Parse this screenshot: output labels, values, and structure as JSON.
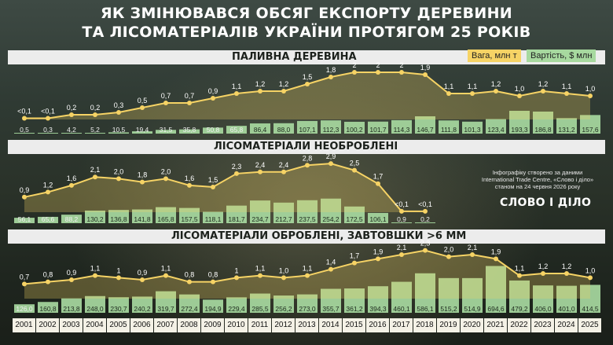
{
  "title": {
    "line1": "ЯК ЗМІНЮВАВСЯ ОБСЯГ ЕКСПОРТУ ДЕРЕВИНИ",
    "line2": "ТА ЛІСОМАТЕРІАЛІВ УКРАЇНИ ПРОТЯГОМ 25 РОКІВ"
  },
  "legend": {
    "weight": "Вага, млн т",
    "value": "Вартість, $ млн"
  },
  "note": {
    "line1": "Інфографіку створено за даними",
    "line2": "International Trade Centre, «Слово і діло»",
    "line3": "станом на 24 червня 2026 року"
  },
  "brand": "СЛОВО І ДІЛО",
  "colors": {
    "weight": "#f6d365",
    "value": "#a7d99f",
    "band": "#ececec"
  },
  "chart_data": [
    {
      "type": "bar",
      "title": "ПАЛИВНА ДЕРЕВИНА",
      "categories": [
        "2001",
        "2002",
        "2003",
        "2004",
        "2005",
        "2006",
        "2007",
        "2008",
        "2009",
        "2010",
        "2011",
        "2012",
        "2013",
        "2014",
        "2015",
        "2016",
        "2017",
        "2018",
        "2019",
        "2020",
        "2021",
        "2022",
        "2023",
        "2024",
        "2025"
      ],
      "series": [
        {
          "name": "Вага, млн т",
          "role": "line",
          "values": [
            0.05,
            0.05,
            0.2,
            0.2,
            0.3,
            0.5,
            0.7,
            0.7,
            0.9,
            1.1,
            1.2,
            1.2,
            1.5,
            1.8,
            2,
            2,
            2,
            1.9,
            1.1,
            1.1,
            1.2,
            1.0,
            1.2,
            1.1,
            1.0
          ],
          "labels": [
            "<0,1",
            "<0,1",
            "0,2",
            "0,2",
            "0,3",
            "0,5",
            "0,7",
            "0,7",
            "0,9",
            "1,1",
            "1,2",
            "1,2",
            "1,5",
            "1,8",
            "2",
            "2",
            "2",
            "1,9",
            "1,1",
            "1,1",
            "1,2",
            "1,0",
            "1,2",
            "1,1",
            "1,0"
          ]
        },
        {
          "name": "Вартість, $ млн",
          "role": "bar",
          "values": [
            0.5,
            0.3,
            4.2,
            5.2,
            10.5,
            19.4,
            31.5,
            35.8,
            50.8,
            65.8,
            86.4,
            88.0,
            107.1,
            112.3,
            100.2,
            101.7,
            114.3,
            146.7,
            111.8,
            101.3,
            123.4,
            193.3,
            186.8,
            131.2,
            157.6
          ],
          "labels": [
            "0,5",
            "0,3",
            "4,2",
            "5,2",
            "10,5",
            "19,4",
            "31,5",
            "35,8",
            "50,8",
            "65,8",
            "86,4",
            "88,0",
            "107,1",
            "112,3",
            "100,2",
            "101,7",
            "114,3",
            "146,7",
            "111,8",
            "101,3",
            "123,4",
            "193,3",
            "186,8",
            "131,2",
            "157,6"
          ]
        }
      ]
    },
    {
      "type": "bar",
      "title": "ЛІСОМАТЕРІАЛИ НЕОБРОБЛЕНІ",
      "categories": [
        "2001",
        "2002",
        "2003",
        "2004",
        "2005",
        "2006",
        "2007",
        "2008",
        "2009",
        "2010",
        "2011",
        "2012",
        "2013",
        "2014",
        "2015",
        "2016",
        "2017",
        "2018"
      ],
      "series": [
        {
          "name": "Вага, млн т",
          "role": "line",
          "values": [
            0.9,
            1.2,
            1.6,
            2.1,
            2.0,
            1.8,
            2.0,
            1.6,
            1.5,
            2.3,
            2.4,
            2.4,
            2.8,
            2.9,
            2.5,
            1.7,
            0.05,
            0.05
          ],
          "labels": [
            "0,9",
            "1,2",
            "1,6",
            "2,1",
            "2,0",
            "1,8",
            "2,0",
            "1,6",
            "1,5",
            "2,3",
            "2,4",
            "2,4",
            "2,8",
            "2,9",
            "2,5",
            "1,7",
            "<0,1",
            "<0,1"
          ]
        },
        {
          "name": "Вартість, $ млн",
          "role": "bar",
          "values": [
            56.1,
            65.6,
            88.2,
            130.2,
            136.8,
            141.8,
            165.8,
            157.5,
            118.1,
            181.7,
            234.7,
            212.7,
            237.5,
            254.2,
            172.5,
            106.1,
            0.9,
            0.2
          ],
          "labels": [
            "56,1",
            "65,6",
            "88,2",
            "130,2",
            "136,8",
            "141,8",
            "165,8",
            "157,5",
            "118,1",
            "181,7",
            "234,7",
            "212,7",
            "237,5",
            "254,2",
            "172,5",
            "106,1",
            "0,9",
            "0,2"
          ]
        }
      ]
    },
    {
      "type": "bar",
      "title": "ЛІСОМАТЕРІАЛИ ОБРОБЛЕНІ, ЗАВТОВШКИ >6 ММ",
      "categories": [
        "2001",
        "2002",
        "2003",
        "2004",
        "2005",
        "2006",
        "2007",
        "2008",
        "2009",
        "2010",
        "2011",
        "2012",
        "2013",
        "2014",
        "2015",
        "2016",
        "2017",
        "2018",
        "2019",
        "2020",
        "2021",
        "2022",
        "2023",
        "2024",
        "2025"
      ],
      "series": [
        {
          "name": "Вага, млн т",
          "role": "line",
          "values": [
            0.7,
            0.8,
            0.9,
            1.1,
            1,
            0.9,
            1.1,
            0.8,
            0.8,
            1,
            1.1,
            1.0,
            1.1,
            1.4,
            1.7,
            1.9,
            2.1,
            2.3,
            2.0,
            2.1,
            1.9,
            1.1,
            1.2,
            1.2,
            1.0
          ],
          "labels": [
            "0,7",
            "0,8",
            "0,9",
            "1,1",
            "1",
            "0,9",
            "1,1",
            "0,8",
            "0,8",
            "1",
            "1,1",
            "1,0",
            "1,1",
            "1,4",
            "1,7",
            "1,9",
            "2,1",
            "2,3",
            "2,0",
            "2,1",
            "1,9",
            "1,1",
            "1,2",
            "1,2",
            "1,0"
          ]
        },
        {
          "name": "Вартість, $ млн",
          "role": "bar",
          "values": [
            126.0,
            160.8,
            213.8,
            248.0,
            230.7,
            240.2,
            319.7,
            272.4,
            194.9,
            229.4,
            285.5,
            256.2,
            273.0,
            355.7,
            361.2,
            394.3,
            460.1,
            586.1,
            515.2,
            514.9,
            694.6,
            479.2,
            406.0,
            401.0,
            414.5
          ],
          "labels": [
            "126,0",
            "160,8",
            "213,8",
            "248,0",
            "230,7",
            "240,2",
            "319,7",
            "272,4",
            "194,9",
            "229,4",
            "285,5",
            "256,2",
            "273,0",
            "355,7",
            "361,2",
            "394,3",
            "460,1",
            "586,1",
            "515,2",
            "514,9",
            "694,6",
            "479,2",
            "406,0",
            "401,0",
            "414,5"
          ]
        }
      ]
    }
  ]
}
